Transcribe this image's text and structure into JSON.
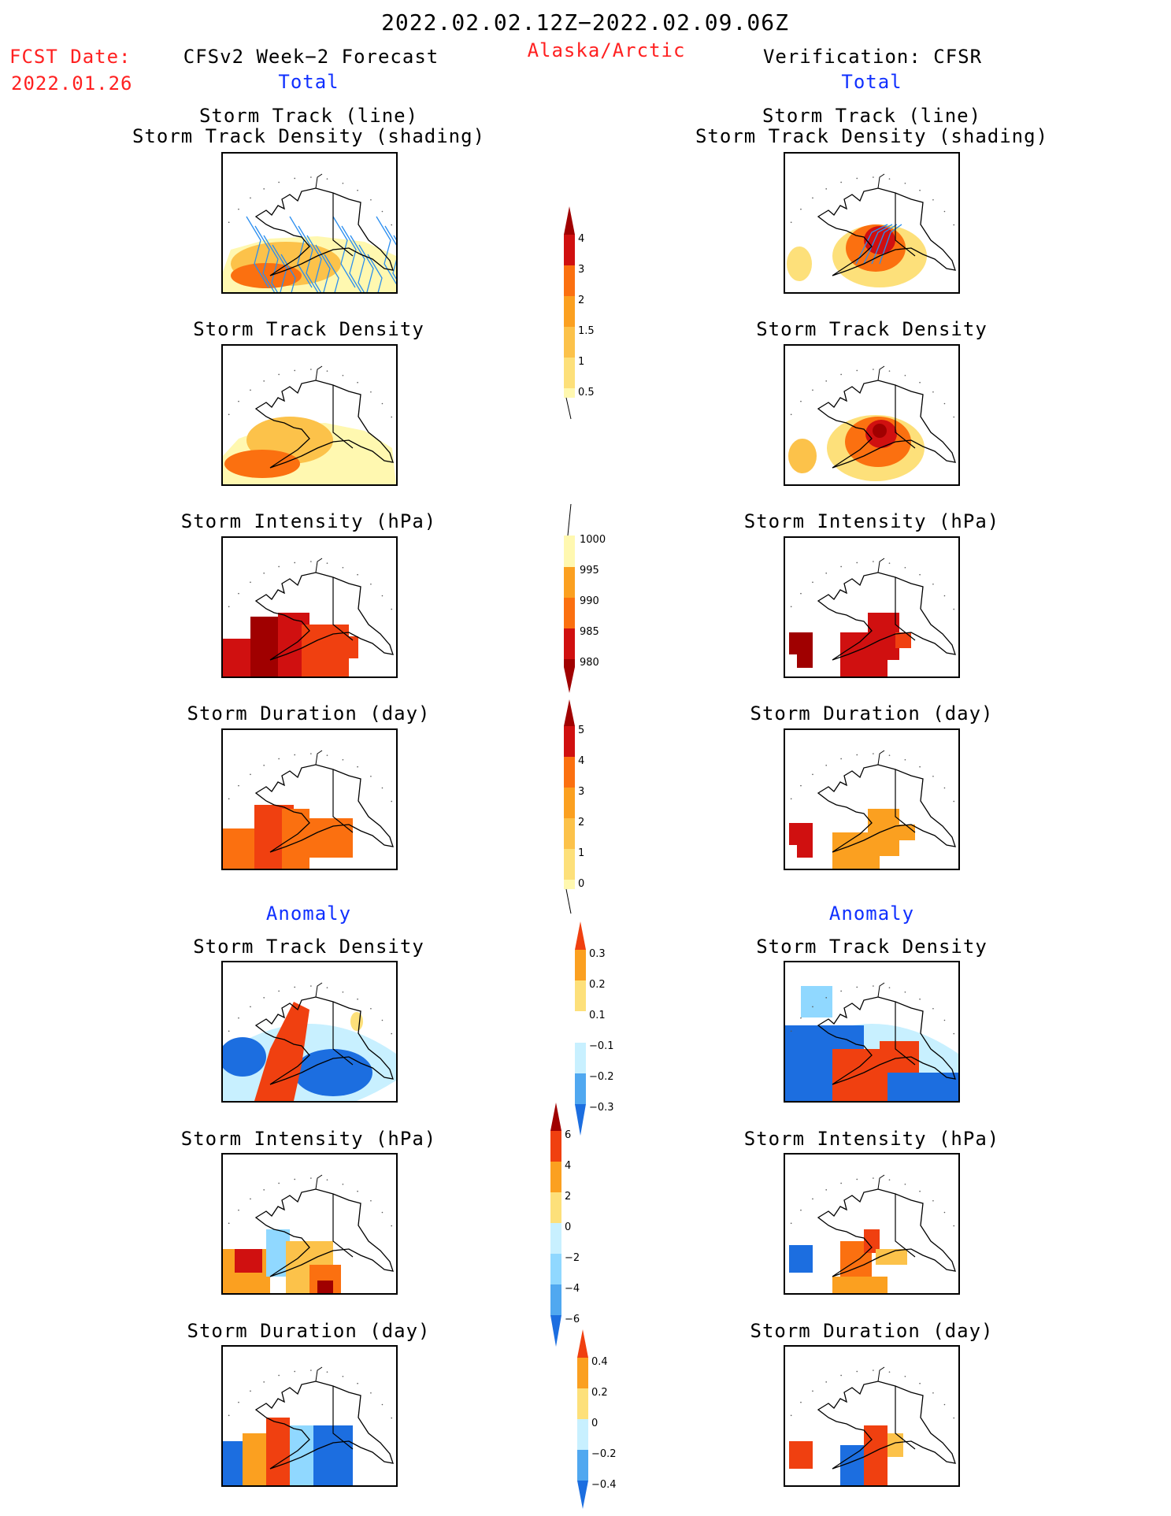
{
  "header": {
    "period": "2022.02.02.12Z−2022.02.09.06Z",
    "fcst_label": "FCST Date:",
    "fcst_date": "2022.01.26",
    "model": "CFSv2 Week−2 Forecast",
    "region": "Alaska/Arctic",
    "verification": "Verification: CFSR"
  },
  "sections": {
    "total": "Total",
    "anomaly": "Anomaly"
  },
  "titles": {
    "track_line": "Storm Track (line)",
    "track_shading": "Storm Track Density (shading)",
    "density": "Storm Track Density",
    "intensity": "Storm Intensity (hPa)",
    "duration": "Storm Duration (day)"
  },
  "colorbars": {
    "track_density": [
      "4",
      "3",
      "2",
      "1.5",
      "1",
      "0.5"
    ],
    "intensity": [
      "1000",
      "995",
      "990",
      "985",
      "980"
    ],
    "duration": [
      "5",
      "4",
      "3",
      "2",
      "1",
      "0"
    ],
    "anom_density": [
      "0.3",
      "0.2",
      "0.1",
      "−0.1",
      "−0.2",
      "−0.3"
    ],
    "anom_intensity": [
      "6",
      "4",
      "2",
      "0",
      "−2",
      "−4",
      "−6"
    ],
    "anom_duration": [
      "0.4",
      "0.2",
      "0",
      "−0.2",
      "−0.4"
    ]
  },
  "colors": {
    "warm": [
      "#fff8b0",
      "#fde07a",
      "#fcc24a",
      "#fba020",
      "#fb7010",
      "#f04010",
      "#d01010",
      "#a00000"
    ],
    "cool": [
      "#c8f0ff",
      "#90d8ff",
      "#50a8f0",
      "#1c6ee0"
    ],
    "track_line": "#2a8ef0"
  }
}
